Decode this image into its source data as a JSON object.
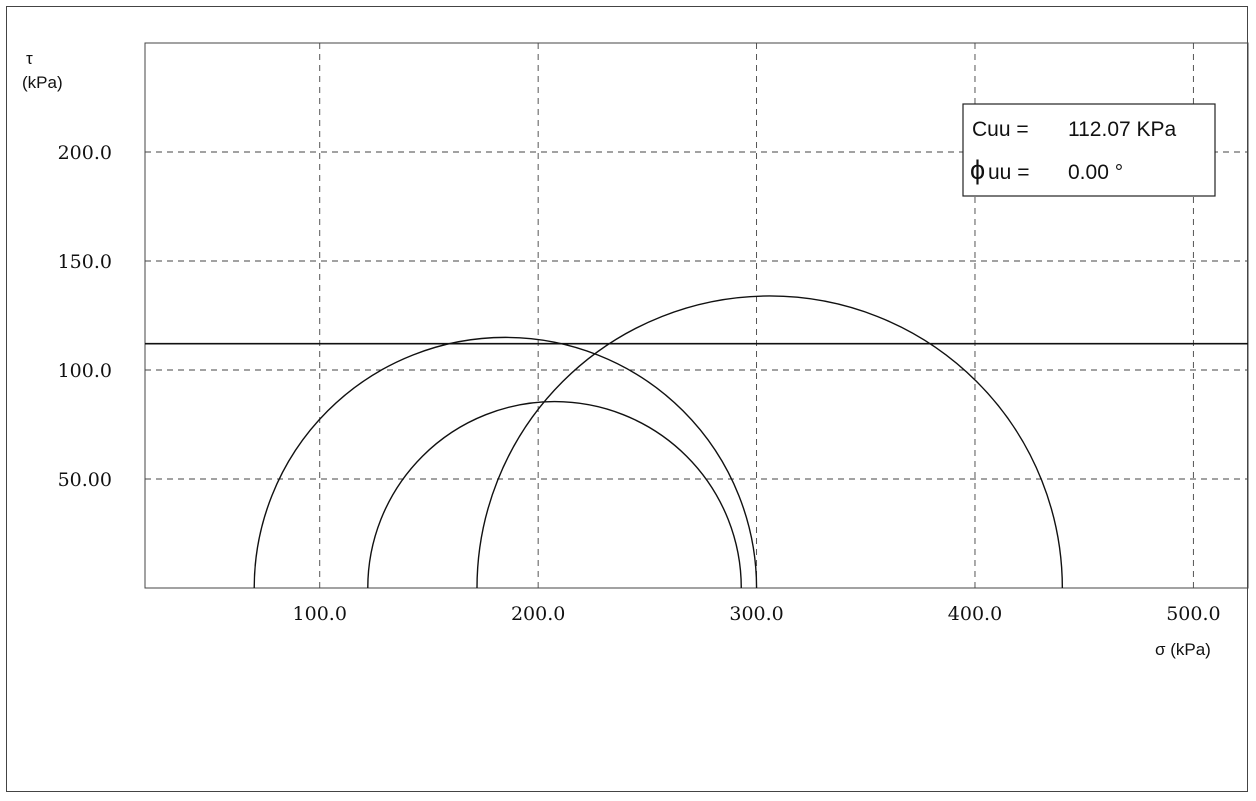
{
  "chart_data": {
    "type": "line",
    "title": "",
    "xlabel": "σ  (kPa)",
    "ylabel_symbol": "τ",
    "ylabel_unit": "(kPa)",
    "xlim": [
      20,
      525
    ],
    "ylim": [
      0,
      250
    ],
    "x_ticks": [
      {
        "value": 100,
        "label": "100.0"
      },
      {
        "value": 200,
        "label": "200.0"
      },
      {
        "value": 300,
        "label": "300.0"
      },
      {
        "value": 400,
        "label": "400.0"
      },
      {
        "value": 500,
        "label": "500.0"
      }
    ],
    "y_ticks": [
      {
        "value": 50,
        "label": "50.00"
      },
      {
        "value": 100,
        "label": "100.0"
      },
      {
        "value": 150,
        "label": "150.0"
      },
      {
        "value": 200,
        "label": "200.0"
      }
    ],
    "grid": true,
    "circles": [
      {
        "sigma3": 70,
        "sigma1": 300
      },
      {
        "sigma3": 122,
        "sigma1": 293
      },
      {
        "sigma3": 172,
        "sigma1": 440
      }
    ],
    "envelope": {
      "intercept": 112.07,
      "slope_deg": 0.0,
      "from": 20,
      "to": 525
    },
    "legend": {
      "line1_label": "Cuu =",
      "line1_value": "112.07 KPa",
      "line2_symbol": "ϕ",
      "line2_label": "uu =",
      "line2_value": "0.00 °",
      "position": "top-right"
    }
  }
}
